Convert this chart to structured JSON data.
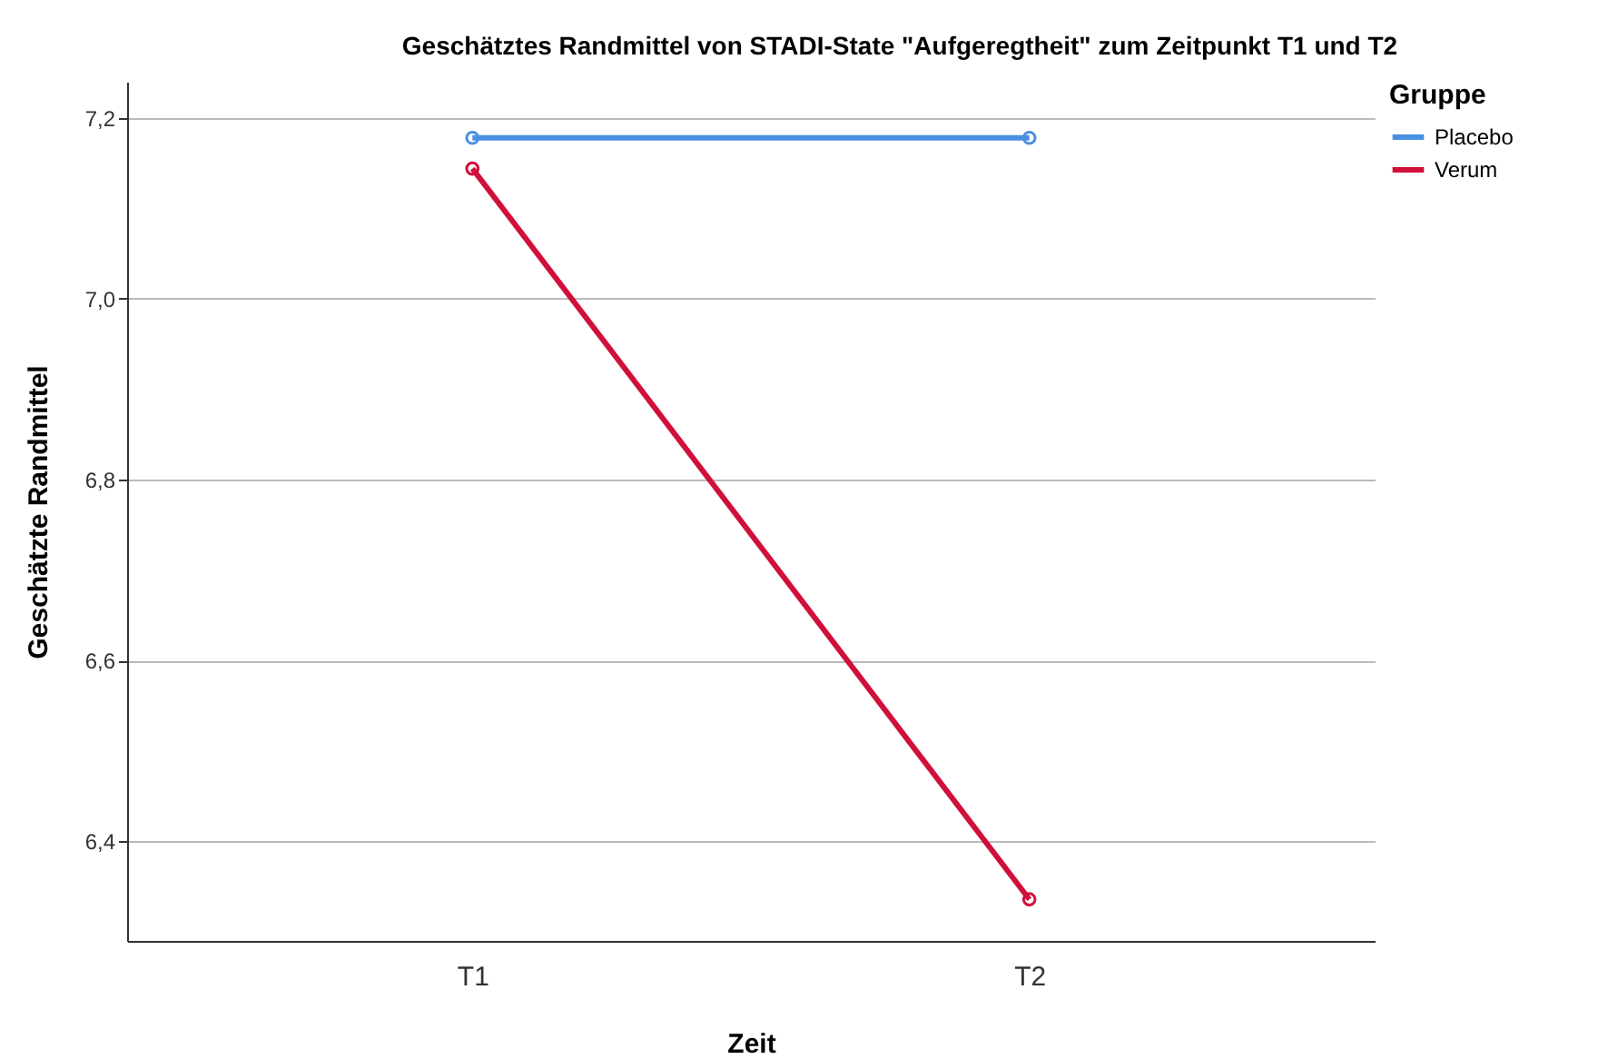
{
  "chart_data": {
    "type": "line",
    "title": "Geschätztes Randmittel von STADI-State \"Aufgeregtheit\" zum Zeitpunkt T1 und T2",
    "xlabel": "Zeit",
    "ylabel": "Geschätzte Randmittel",
    "legend_title": "Gruppe",
    "categories": [
      "T1",
      "T2"
    ],
    "series": [
      {
        "name": "Placebo",
        "color": "#4a90e2",
        "values": [
          7.178,
          7.178
        ]
      },
      {
        "name": "Verum",
        "color": "#d0103a",
        "values": [
          7.144,
          6.336
        ]
      }
    ],
    "ylim": [
      6.29,
      7.24
    ],
    "yticks": [
      {
        "value": 6.4,
        "label": "6,4"
      },
      {
        "value": 6.6,
        "label": "6,6"
      },
      {
        "value": 6.8,
        "label": "6,8"
      },
      {
        "value": 7.0,
        "label": "7,0"
      },
      {
        "value": 7.2,
        "label": "7,2"
      }
    ],
    "grid": "y",
    "legend": "top right",
    "marker": "circle",
    "line_style": "solid"
  }
}
